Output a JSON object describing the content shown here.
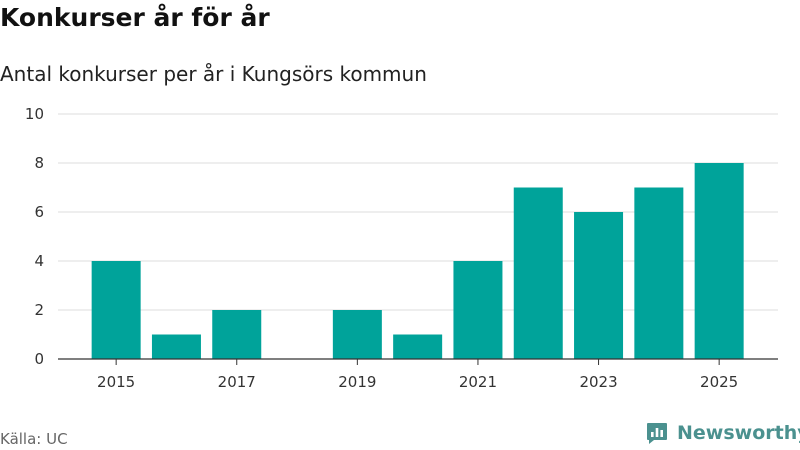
{
  "header": {
    "title": "Konkurser år för år",
    "subtitle": "Antal konkurser per år i Kungsörs kommun"
  },
  "footer": {
    "source": "Källa: UC",
    "brand": "Newsworthy",
    "brand_icon": "bar-chart-logo-icon"
  },
  "colors": {
    "bar": "#00a39a",
    "grid": "#dddddd",
    "axis": "#333333",
    "brand": "#4b918f"
  },
  "chart_data": {
    "type": "bar",
    "title": "Konkurser år för år",
    "subtitle": "Antal konkurser per år i Kungsörs kommun",
    "xlabel": "",
    "ylabel": "",
    "categories": [
      "2015",
      "2016",
      "2017",
      "2018",
      "2019",
      "2020",
      "2021",
      "2022",
      "2023",
      "2024",
      "2025"
    ],
    "values": [
      4,
      1,
      2,
      0,
      2,
      1,
      4,
      7,
      6,
      7,
      8
    ],
    "x_tick_labels": [
      "2015",
      "2017",
      "2019",
      "2021",
      "2023",
      "2025"
    ],
    "y_ticks": [
      0,
      2,
      4,
      6,
      8,
      10
    ],
    "ylim": [
      0,
      10
    ],
    "grid": true,
    "legend": "none"
  }
}
